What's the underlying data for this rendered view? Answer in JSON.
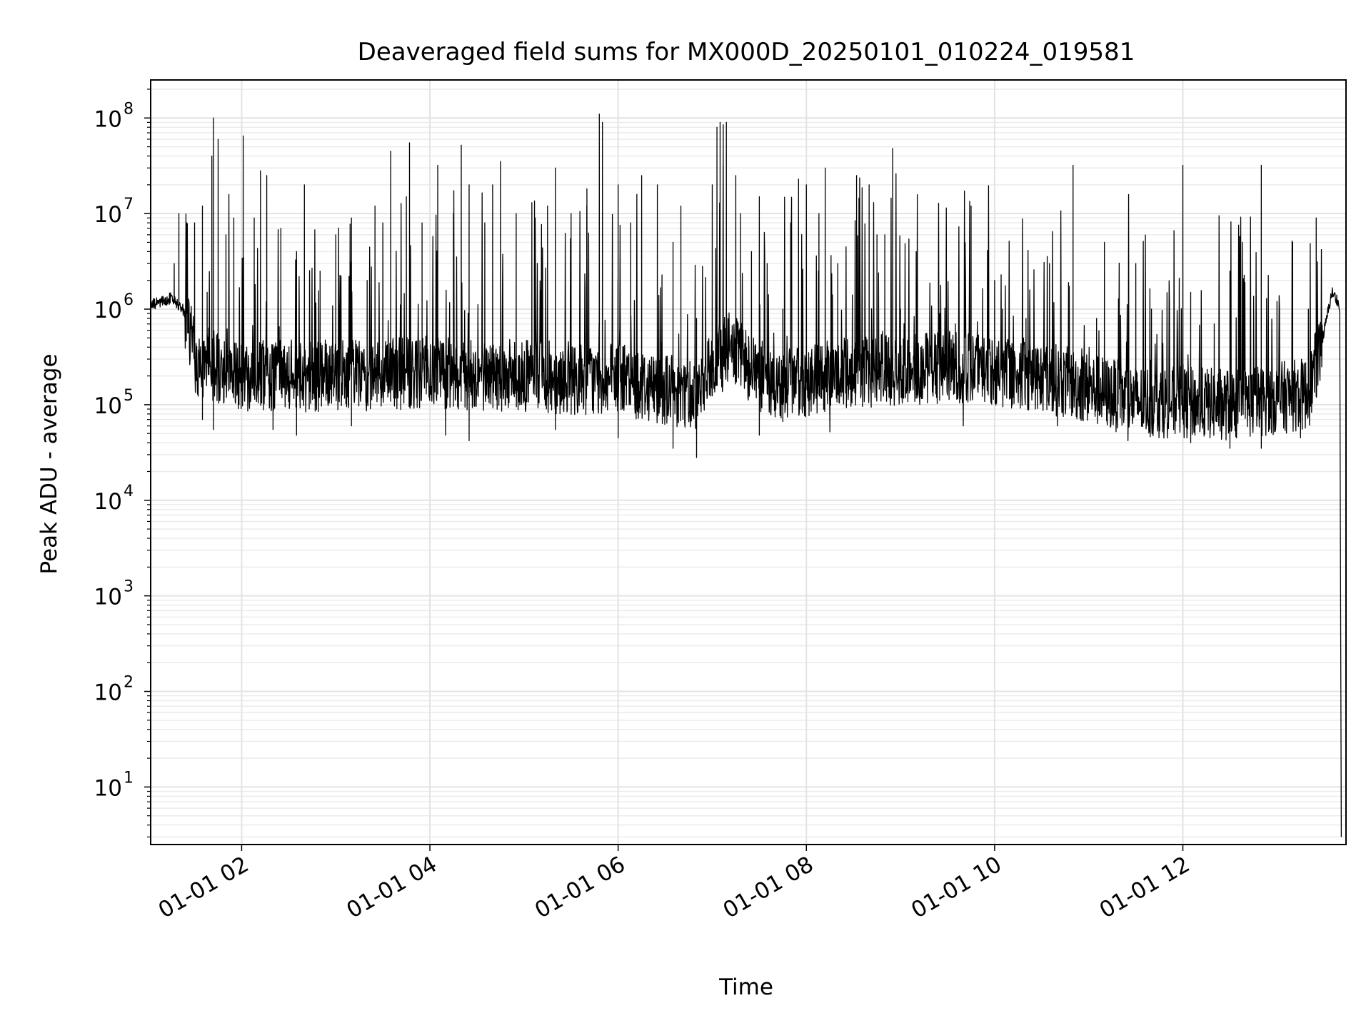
{
  "chart_data": {
    "type": "line",
    "title": "Deaveraged field sums for MX000D_20250101_010224_019581",
    "xlabel": "Time",
    "ylabel": "Peak ADU - average",
    "y_scale": "log",
    "grid": true,
    "grid_minor": true,
    "line_color": "#000000",
    "xlim": [
      "2025-01-01 01:02",
      "2025-01-01 13:44"
    ],
    "ylim": [
      2.5,
      250000000
    ],
    "x_ticks": [
      {
        "t": "2025-01-01 02:00",
        "label": "01-01 02"
      },
      {
        "t": "2025-01-01 04:00",
        "label": "01-01 04"
      },
      {
        "t": "2025-01-01 06:00",
        "label": "01-01 06"
      },
      {
        "t": "2025-01-01 08:00",
        "label": "01-01 08"
      },
      {
        "t": "2025-01-01 10:00",
        "label": "01-01 10"
      },
      {
        "t": "2025-01-01 12:00",
        "label": "01-01 12"
      }
    ],
    "y_ticks": [
      {
        "v": 10,
        "base": "10",
        "exp": "1"
      },
      {
        "v": 100,
        "base": "10",
        "exp": "2"
      },
      {
        "v": 1000,
        "base": "10",
        "exp": "3"
      },
      {
        "v": 10000,
        "base": "10",
        "exp": "4"
      },
      {
        "v": 100000,
        "base": "10",
        "exp": "5"
      },
      {
        "v": 1000000,
        "base": "10",
        "exp": "6"
      },
      {
        "v": 10000000,
        "base": "10",
        "exp": "7"
      },
      {
        "v": 100000000,
        "base": "10",
        "exp": "8"
      }
    ],
    "series": [
      {
        "baseline": [
          [
            "2025-01-01 01:02",
            1100000
          ],
          [
            "2025-01-01 01:15",
            1300000
          ],
          [
            "2025-01-01 01:25",
            900000
          ],
          [
            "2025-01-01 01:30",
            300000
          ],
          [
            "2025-01-01 02:00",
            200000
          ],
          [
            "2025-01-01 03:00",
            200000
          ],
          [
            "2025-01-01 04:00",
            220000
          ],
          [
            "2025-01-01 05:00",
            200000
          ],
          [
            "2025-01-01 06:00",
            180000
          ],
          [
            "2025-01-01 06:50",
            130000
          ],
          [
            "2025-01-01 07:10",
            400000
          ],
          [
            "2025-01-01 07:40",
            150000
          ],
          [
            "2025-01-01 08:30",
            220000
          ],
          [
            "2025-01-01 09:30",
            250000
          ],
          [
            "2025-01-01 10:30",
            200000
          ],
          [
            "2025-01-01 11:30",
            110000
          ],
          [
            "2025-01-01 12:30",
            100000
          ],
          [
            "2025-01-01 13:20",
            130000
          ],
          [
            "2025-01-01 13:28",
            400000
          ],
          [
            "2025-01-01 13:35",
            1500000
          ],
          [
            "2025-01-01 13:39",
            1200000
          ],
          [
            "2025-01-01 13:41",
            3
          ]
        ],
        "spikes": [
          [
            "2025-01-01 01:17",
            3000000
          ],
          [
            "2025-01-01 01:20",
            10000000
          ],
          [
            "2025-01-01 01:25",
            8000000
          ],
          [
            "2025-01-01 01:30",
            8000000
          ],
          [
            "2025-01-01 01:35",
            12000000
          ],
          [
            "2025-01-01 01:38",
            1500000
          ],
          [
            "2025-01-01 01:41",
            40000000
          ],
          [
            "2025-01-01 01:42",
            100000000
          ],
          [
            "2025-01-01 01:45",
            60000000
          ],
          [
            "2025-01-01 01:50",
            6000000
          ],
          [
            "2025-01-01 01:55",
            9000000
          ],
          [
            "2025-01-01 02:01",
            65000000
          ],
          [
            "2025-01-01 02:08",
            9000000
          ],
          [
            "2025-01-01 02:12",
            28000000
          ],
          [
            "2025-01-01 02:16",
            25000000
          ],
          [
            "2025-01-01 02:25",
            7000000
          ],
          [
            "2025-01-01 02:35",
            4000000
          ],
          [
            "2025-01-01 02:40",
            20000000
          ],
          [
            "2025-01-01 02:50",
            2500000
          ],
          [
            "2025-01-01 03:00",
            6000000
          ],
          [
            "2025-01-01 03:10",
            9000000
          ],
          [
            "2025-01-01 03:20",
            2000000
          ],
          [
            "2025-01-01 03:25",
            12000000
          ],
          [
            "2025-01-01 03:30",
            8000000
          ],
          [
            "2025-01-01 03:35",
            45000000
          ],
          [
            "2025-01-01 03:45",
            15000000
          ],
          [
            "2025-01-01 03:47",
            55000000
          ],
          [
            "2025-01-01 03:55",
            8000000
          ],
          [
            "2025-01-01 04:05",
            32000000
          ],
          [
            "2025-01-01 04:15",
            10000000
          ],
          [
            "2025-01-01 04:20",
            52000000
          ],
          [
            "2025-01-01 04:25",
            20000000
          ],
          [
            "2025-01-01 04:35",
            8000000
          ],
          [
            "2025-01-01 04:40",
            20000000
          ],
          [
            "2025-01-01 04:45",
            35000000
          ],
          [
            "2025-01-01 04:55",
            10000000
          ],
          [
            "2025-01-01 05:05",
            13000000
          ],
          [
            "2025-01-01 05:15",
            12000000
          ],
          [
            "2025-01-01 05:20",
            30000000
          ],
          [
            "2025-01-01 05:30",
            10000000
          ],
          [
            "2025-01-01 05:40",
            12000000
          ],
          [
            "2025-01-01 05:48",
            110000000
          ],
          [
            "2025-01-01 05:50",
            90000000
          ],
          [
            "2025-01-01 06:00",
            20000000
          ],
          [
            "2025-01-01 06:08",
            8000000
          ],
          [
            "2025-01-01 06:15",
            25000000
          ],
          [
            "2025-01-01 06:25",
            20000000
          ],
          [
            "2025-01-01 06:35",
            5000000
          ],
          [
            "2025-01-01 06:40",
            12000000
          ],
          [
            "2025-01-01 06:50",
            800000
          ],
          [
            "2025-01-01 07:00",
            20000000
          ],
          [
            "2025-01-01 07:03",
            80000000
          ],
          [
            "2025-01-01 07:05",
            90000000
          ],
          [
            "2025-01-01 07:07",
            85000000
          ],
          [
            "2025-01-01 07:09",
            90000000
          ],
          [
            "2025-01-01 07:15",
            25000000
          ],
          [
            "2025-01-01 07:18",
            10000000
          ],
          [
            "2025-01-01 07:25",
            4000000
          ],
          [
            "2025-01-01 07:30",
            15000000
          ],
          [
            "2025-01-01 07:35",
            3000000
          ],
          [
            "2025-01-01 07:45",
            1000000
          ],
          [
            "2025-01-01 07:50",
            8000000
          ],
          [
            "2025-01-01 07:55",
            23000000
          ],
          [
            "2025-01-01 08:00",
            20000000
          ],
          [
            "2025-01-01 08:08",
            10000000
          ],
          [
            "2025-01-01 08:12",
            30000000
          ],
          [
            "2025-01-01 08:20",
            3000000
          ],
          [
            "2025-01-01 08:32",
            25000000
          ],
          [
            "2025-01-01 08:40",
            20000000
          ],
          [
            "2025-01-01 08:45",
            6000000
          ],
          [
            "2025-01-01 08:50",
            6000000
          ],
          [
            "2025-01-01 08:55",
            48000000
          ],
          [
            "2025-01-01 09:00",
            1000000
          ],
          [
            "2025-01-01 09:10",
            4000000
          ],
          [
            "2025-01-01 09:25",
            900000
          ],
          [
            "2025-01-01 09:35",
            700000
          ],
          [
            "2025-01-01 09:45",
            12000000
          ],
          [
            "2025-01-01 10:00",
            2000000
          ],
          [
            "2025-01-01 10:05",
            1000000
          ],
          [
            "2025-01-01 10:20",
            800000
          ],
          [
            "2025-01-01 10:35",
            3000000
          ],
          [
            "2025-01-01 10:50",
            32000000
          ],
          [
            "2025-01-01 11:05",
            800000
          ],
          [
            "2025-01-01 11:10",
            5000000
          ],
          [
            "2025-01-01 11:30",
            3000000
          ],
          [
            "2025-01-01 11:40",
            1000000
          ],
          [
            "2025-01-01 12:00",
            32000000
          ],
          [
            "2025-01-01 12:05",
            1500000
          ],
          [
            "2025-01-01 12:20",
            700000
          ],
          [
            "2025-01-01 12:30",
            2500000
          ],
          [
            "2025-01-01 12:50",
            32000000
          ],
          [
            "2025-01-01 13:00",
            1200000
          ],
          [
            "2025-01-01 13:10",
            5000000
          ],
          [
            "2025-01-01 13:20",
            1000000
          ],
          [
            "2025-01-01 13:25",
            9000000
          ]
        ],
        "troughs": [
          [
            "2025-01-01 01:35",
            70000
          ],
          [
            "2025-01-01 01:42",
            55000
          ],
          [
            "2025-01-01 02:20",
            55000
          ],
          [
            "2025-01-01 02:35",
            48000
          ],
          [
            "2025-01-01 03:10",
            60000
          ],
          [
            "2025-01-01 04:10",
            48000
          ],
          [
            "2025-01-01 04:25",
            42000
          ],
          [
            "2025-01-01 05:20",
            55000
          ],
          [
            "2025-01-01 06:00",
            45000
          ],
          [
            "2025-01-01 06:35",
            35000
          ],
          [
            "2025-01-01 06:50",
            28000
          ],
          [
            "2025-01-01 07:30",
            48000
          ],
          [
            "2025-01-01 08:15",
            52000
          ],
          [
            "2025-01-01 09:40",
            60000
          ],
          [
            "2025-01-01 10:40",
            60000
          ],
          [
            "2025-01-01 11:25",
            42000
          ],
          [
            "2025-01-01 12:05",
            40000
          ],
          [
            "2025-01-01 12:30",
            35000
          ],
          [
            "2025-01-01 12:50",
            35000
          ],
          [
            "2025-01-01 13:15",
            45000
          ]
        ]
      }
    ]
  }
}
